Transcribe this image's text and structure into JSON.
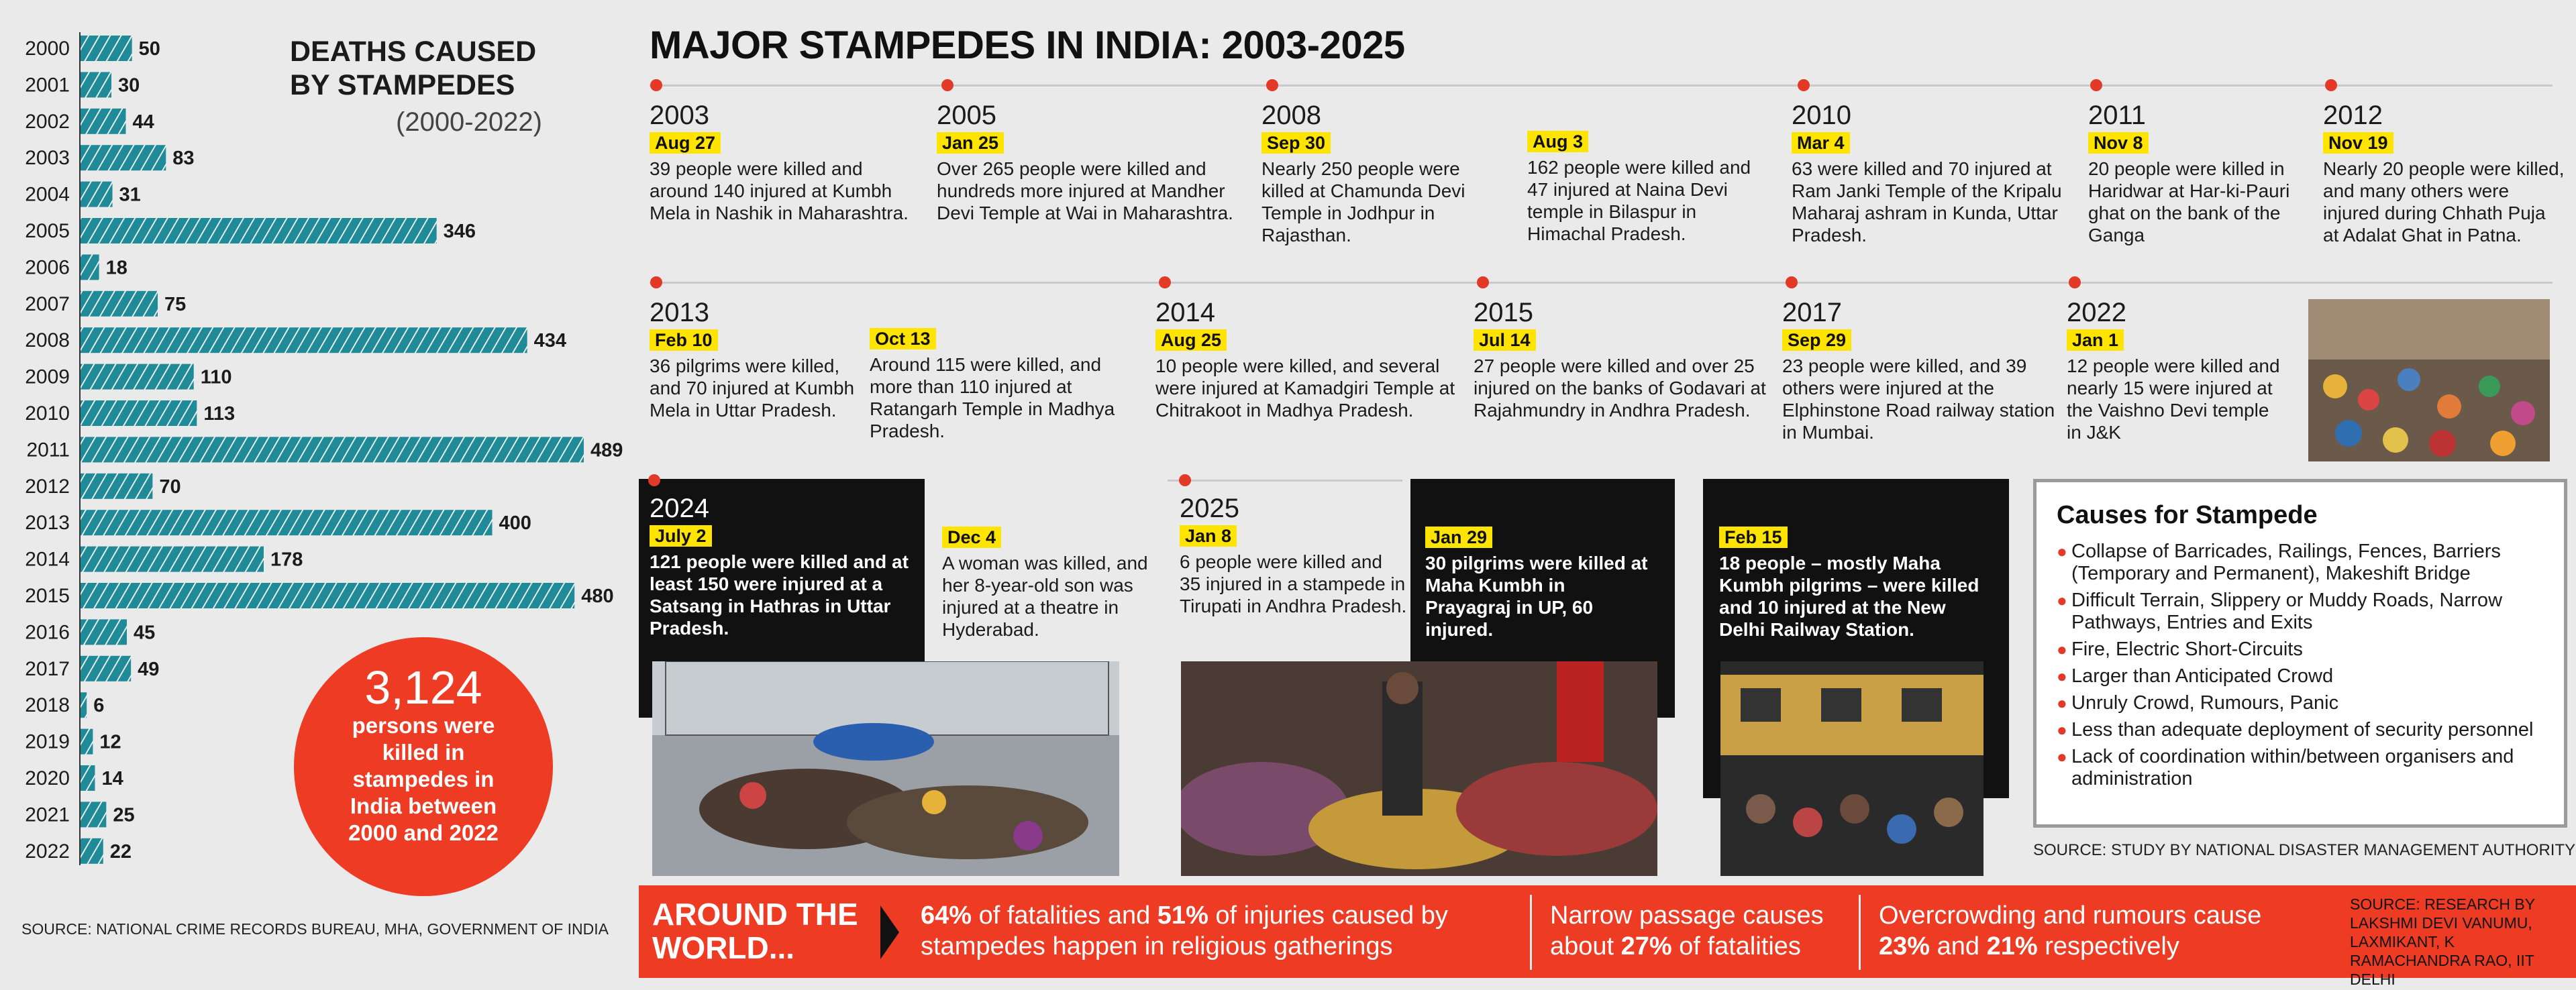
{
  "left_panel": {
    "title_line1": "DEATHS CAUSED",
    "title_line2": "BY STAMPEDES",
    "subtitle": "(2000-2022)",
    "circle_number": "3,124",
    "circle_text": "persons were killed in stampedes in India between 2000 and 2022",
    "source": "SOURCE: NATIONAL CRIME RECORDS BUREAU, MHA, GOVERNMENT OF INDIA",
    "bar_color": "#1f8a98"
  },
  "chart_data": {
    "type": "bar",
    "orientation": "horizontal",
    "title": "DEATHS CAUSED BY STAMPEDES (2000-2022)",
    "categories": [
      "2000",
      "2001",
      "2002",
      "2003",
      "2004",
      "2005",
      "2006",
      "2007",
      "2008",
      "2009",
      "2010",
      "2011",
      "2012",
      "2013",
      "2014",
      "2015",
      "2016",
      "2017",
      "2018",
      "2019",
      "2020",
      "2021",
      "2022"
    ],
    "values": [
      50,
      30,
      44,
      83,
      31,
      346,
      18,
      75,
      434,
      110,
      113,
      489,
      70,
      400,
      178,
      480,
      45,
      49,
      6,
      12,
      14,
      25,
      22
    ],
    "xlim": [
      0,
      489
    ]
  },
  "timeline": {
    "title": "MAJOR STAMPEDES IN INDIA: 2003-2025",
    "row1": [
      {
        "year": "2003",
        "date": "Aug 27",
        "desc": "39 people were killed and around 140 injured at Kumbh Mela in Nashik in Maharashtra."
      },
      {
        "year": "2005",
        "date": "Jan 25",
        "desc": "Over 265 people were killed and hundreds more injured at Mandher Devi Temple at Wai in Maharashtra."
      },
      {
        "year": "2008",
        "date": "Sep 30",
        "desc": "Nearly 250 people were killed at Chamunda Devi Temple in Jodhpur in Rajasthan."
      },
      {
        "year": "",
        "date": "Aug 3",
        "desc": "162 people were killed and 47 injured at Naina Devi temple in Bilaspur in Himachal Pradesh."
      },
      {
        "year": "2010",
        "date": "Mar 4",
        "desc": "63 were killed and 70 injured at Ram Janki Temple of the Kripalu Maharaj ashram in Kunda, Uttar Pradesh."
      },
      {
        "year": "2011",
        "date": "Nov 8",
        "desc": "20 people were killed in Haridwar at Har-ki-Pauri ghat on the bank of the Ganga"
      },
      {
        "year": "2012",
        "date": "Nov 19",
        "desc": "Nearly 20 people were killed, and many others were injured during Chhath Puja at Adalat Ghat in Patna."
      }
    ],
    "row2": [
      {
        "year": "2013",
        "date": "Feb 10",
        "desc": "36 pilgrims were killed, and 70 injured at Kumbh Mela in Uttar Pradesh."
      },
      {
        "year": "",
        "date": "Oct 13",
        "desc": "Around 115 were killed, and more than 110 injured at Ratangarh Temple in Madhya Pradesh."
      },
      {
        "year": "2014",
        "date": "Aug 25",
        "desc": "10 people were killed, and several were injured at Kamadgiri Temple at Chitrakoot in Madhya Pradesh."
      },
      {
        "year": "2015",
        "date": "Jul 14",
        "desc": "27 people were killed and over 25 injured on the banks of Godavari at Rajahmundry in Andhra Pradesh."
      },
      {
        "year": "2017",
        "date": "Sep 29",
        "desc": "23 people were killed, and 39 others were injured at the Elphinstone Road railway station in Mumbai."
      },
      {
        "year": "2022",
        "date": "Jan 1",
        "desc": "12 people were killed and nearly 15 were injured at the Vaishno Devi temple in J&K"
      }
    ],
    "row3": [
      {
        "year": "2024",
        "date": "July 2",
        "desc": "121 people were killed and at least 150 were injured at a Satsang in Hathras in Uttar Pradesh."
      },
      {
        "year": "",
        "date": "Dec 4",
        "desc": "A woman was killed, and her 8-year-old son was injured at a theatre in Hyderabad."
      },
      {
        "year": "2025",
        "date": "Jan 8",
        "desc": "6 people were killed and 35 injured in a stampede in Tirupati in Andhra Pradesh."
      },
      {
        "year": "",
        "date": "Jan 29",
        "desc": "30 pilgrims were killed at Maha Kumbh in Prayagraj in UP, 60 injured."
      },
      {
        "year": "",
        "date": "Feb 15",
        "desc": "18 people – mostly Maha Kumbh pilgrims – were killed and 10 injured at the New Delhi Railway Station."
      }
    ]
  },
  "causes": {
    "title": "Causes for Stampede",
    "items": [
      "Collapse of Barricades, Railings, Fences, Barriers (Temporary and Permanent), Makeshift Bridge",
      "Difficult Terrain, Slippery or Muddy Roads, Narrow Pathways, Entries and Exits",
      "Fire, Electric Short-Circuits",
      "Larger than Anticipated Crowd",
      "Unruly Crowd, Rumours, Panic",
      "Less than adequate deployment of security personnel",
      "Lack of coordination within/between organisers and administration"
    ],
    "source": "SOURCE: STUDY BY NATIONAL DISASTER MANAGEMENT AUTHORITY"
  },
  "world": {
    "label_line1": "AROUND THE",
    "label_line2": "WORLD...",
    "f1_pct1": "64%",
    "f1_mid": " of fatalities and ",
    "f1_pct2": "51%",
    "f1_end": " of injuries caused by",
    "f1_line2": "stampedes happen in religious gatherings",
    "f2_line1": "Narrow passage causes",
    "f2_pre": "about ",
    "f2_pct": "27%",
    "f2_end": " of fatalities",
    "f3_line1": "Overcrowding and rumours cause",
    "f3_pct1": "23%",
    "f3_mid": " and ",
    "f3_pct2": "21%",
    "f3_end": " respectively",
    "source": "SOURCE: RESEARCH BY LAKSHMI DEVI VANUMU, LAXMIKANT, K RAMACHANDRA RAO, IIT DELHI"
  },
  "colors": {
    "accent_red": "#ee3b24",
    "dot_red": "#e23a26",
    "highlight_yellow": "#ffe400",
    "teal": "#1f8a98"
  }
}
